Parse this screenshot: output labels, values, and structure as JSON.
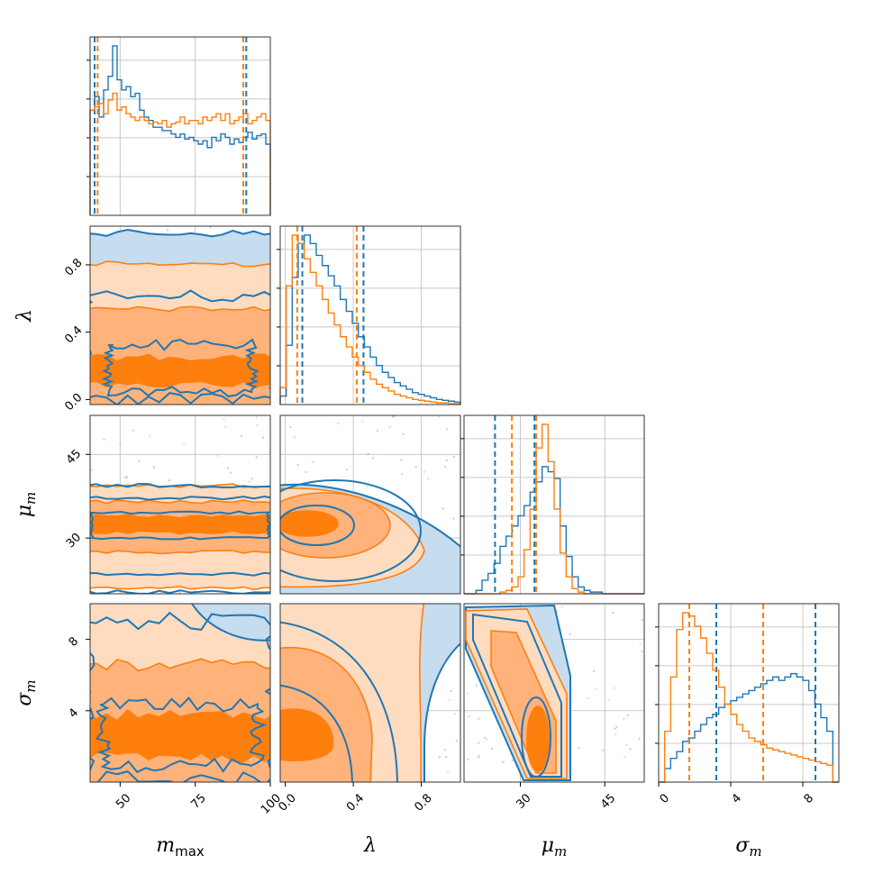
{
  "chart_data": {
    "type": "corner",
    "parameters": [
      {
        "key": "m_max",
        "label_base": "m",
        "label_sub": "max",
        "range": [
          40,
          100
        ],
        "ticks": [
          50,
          75,
          100
        ],
        "tick_labels": [
          "50",
          "75",
          "100"
        ]
      },
      {
        "key": "lambda",
        "label_base": "λ",
        "label_sub": "",
        "range": [
          -0.03,
          1.03
        ],
        "ticks": [
          0.0,
          0.4,
          0.8
        ],
        "tick_labels": [
          "0.0",
          "0.4",
          "0.8"
        ]
      },
      {
        "key": "mu_m",
        "label_base": "μ",
        "label_sub": "m",
        "range": [
          20,
          52
        ],
        "ticks": [
          30,
          45
        ],
        "tick_labels": [
          "30",
          "45"
        ]
      },
      {
        "key": "sigma_m",
        "label_base": "σ",
        "label_sub": "m",
        "range": [
          0,
          10
        ],
        "ticks": [
          0,
          4,
          8
        ],
        "tick_labels": [
          "0",
          "4",
          "8"
        ]
      }
    ],
    "y_tick_labels": {
      "lambda": {
        "ticks": [
          0.0,
          0.4,
          0.8
        ],
        "labels": [
          "0.0",
          "0.4",
          "0.8"
        ]
      },
      "mu_m": {
        "ticks": [
          30,
          45
        ],
        "labels": [
          "30",
          "45"
        ]
      },
      "sigma_m": {
        "ticks": [
          4,
          8
        ],
        "labels": [
          "4",
          "8"
        ]
      }
    },
    "series": [
      {
        "color": "#1f77b4",
        "quantiles": {
          "m_max": [
            41.5,
            92.0
          ],
          "lambda": [
            0.1,
            0.46
          ],
          "mu_m": [
            25.5,
            32.5
          ],
          "sigma_m": [
            3.2,
            8.7
          ]
        },
        "hist": {
          "m_max": [
            0.62,
            0.7,
            0.58,
            0.74,
            0.82,
            1.0,
            0.8,
            0.74,
            0.76,
            0.7,
            0.72,
            0.62,
            0.58,
            0.56,
            0.52,
            0.52,
            0.5,
            0.5,
            0.48,
            0.46,
            0.48,
            0.45,
            0.46,
            0.44,
            0.42,
            0.44,
            0.4,
            0.46,
            0.44,
            0.48,
            0.46,
            0.42,
            0.45,
            0.43,
            0.46,
            0.49,
            0.45,
            0.47,
            0.48,
            0.42
          ],
          "lambda": [
            0.05,
            0.35,
            0.75,
            0.95,
            1.0,
            0.95,
            0.88,
            0.82,
            0.76,
            0.7,
            0.62,
            0.55,
            0.48,
            0.4,
            0.34,
            0.28,
            0.23,
            0.19,
            0.16,
            0.13,
            0.11,
            0.09,
            0.07,
            0.06,
            0.05,
            0.04,
            0.03,
            0.025,
            0.02,
            0.015
          ],
          "mu_m": [
            0.0,
            0.0,
            0.02,
            0.08,
            0.12,
            0.18,
            0.28,
            0.34,
            0.4,
            0.46,
            0.52,
            0.6,
            0.66,
            0.75,
            0.72,
            0.68,
            0.4,
            0.22,
            0.1,
            0.04,
            0.02,
            0.01,
            0.01,
            0.0,
            0.0,
            0.0,
            0.0,
            0.0,
            0.0,
            0.0
          ],
          "sigma_m": [
            0.0,
            0.08,
            0.14,
            0.18,
            0.24,
            0.26,
            0.3,
            0.34,
            0.38,
            0.4,
            0.44,
            0.46,
            0.48,
            0.5,
            0.52,
            0.54,
            0.56,
            0.58,
            0.6,
            0.62,
            0.6,
            0.62,
            0.64,
            0.62,
            0.6,
            0.54,
            0.46,
            0.38,
            0.3,
            0.0
          ]
        }
      },
      {
        "color": "#ff7f0e",
        "quantiles": {
          "m_max": [
            42.5,
            91.0
          ],
          "lambda": [
            0.07,
            0.42
          ],
          "mu_m": [
            28.5,
            32.8
          ],
          "sigma_m": [
            1.7,
            5.8
          ]
        },
        "hist": {
          "m_max": [
            0.62,
            0.64,
            0.66,
            0.6,
            0.68,
            0.72,
            0.62,
            0.64,
            0.6,
            0.58,
            0.56,
            0.58,
            0.56,
            0.54,
            0.55,
            0.54,
            0.56,
            0.52,
            0.54,
            0.55,
            0.58,
            0.54,
            0.56,
            0.56,
            0.54,
            0.58,
            0.56,
            0.58,
            0.6,
            0.56,
            0.6,
            0.54,
            0.56,
            0.58,
            0.6,
            0.54,
            0.56,
            0.58,
            0.6,
            0.56
          ],
          "lambda": [
            0.1,
            0.7,
            1.0,
            0.95,
            0.86,
            0.78,
            0.7,
            0.62,
            0.54,
            0.47,
            0.4,
            0.34,
            0.28,
            0.23,
            0.19,
            0.15,
            0.12,
            0.1,
            0.08,
            0.06,
            0.05,
            0.04,
            0.03,
            0.025,
            0.02,
            0.015,
            0.01,
            0.01,
            0.005,
            0.005
          ],
          "mu_m": [
            0.0,
            0.0,
            0.0,
            0.0,
            0.0,
            0.0,
            0.01,
            0.02,
            0.04,
            0.1,
            0.26,
            0.5,
            0.86,
            1.0,
            0.78,
            0.5,
            0.24,
            0.1,
            0.03,
            0.01,
            0.0,
            0.0,
            0.0,
            0.0,
            0.0,
            0.0,
            0.0,
            0.0,
            0.0,
            0.0
          ],
          "sigma_m": [
            0.0,
            0.3,
            0.62,
            0.9,
            1.0,
            0.98,
            0.92,
            0.85,
            0.76,
            0.66,
            0.56,
            0.46,
            0.4,
            0.34,
            0.3,
            0.26,
            0.24,
            0.22,
            0.2,
            0.19,
            0.18,
            0.17,
            0.16,
            0.15,
            0.14,
            0.13,
            0.12,
            0.11,
            0.1,
            0.0
          ]
        }
      }
    ],
    "pairs": [
      {
        "x": "m_max",
        "y": "lambda"
      },
      {
        "x": "m_max",
        "y": "mu_m"
      },
      {
        "x": "lambda",
        "y": "mu_m"
      },
      {
        "x": "m_max",
        "y": "sigma_m"
      },
      {
        "x": "lambda",
        "y": "sigma_m"
      },
      {
        "x": "mu_m",
        "y": "sigma_m"
      }
    ],
    "grid": true,
    "contour_levels": 3
  }
}
